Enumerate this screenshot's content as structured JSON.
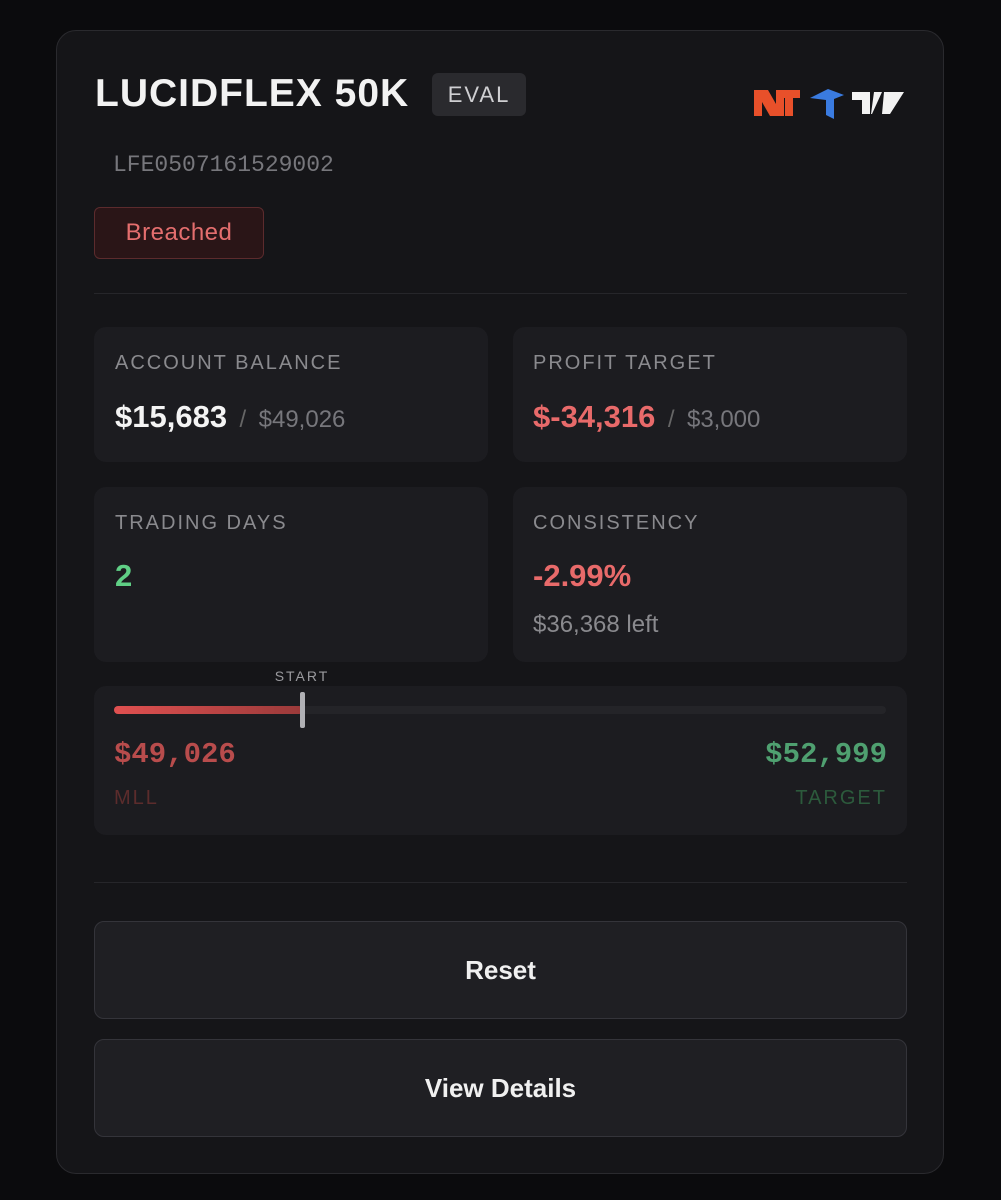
{
  "header": {
    "title": "LUCIDFLEX 50K",
    "badge": "EVAL",
    "account_id": "LFE0507161529002",
    "status": "Breached"
  },
  "stats": [
    {
      "label": "ACCOUNT BALANCE",
      "value": "$15,683",
      "separator": "/",
      "limit": "$49,026"
    },
    {
      "label": "PROFIT TARGET",
      "value": "$-34,316",
      "separator": "/",
      "limit": "$3,000"
    },
    {
      "label": "TRADING DAYS",
      "value": "2"
    },
    {
      "label": "CONSISTENCY",
      "value": "-2.99%",
      "note": "$36,368 left"
    }
  ],
  "progress": {
    "marker_label": "START",
    "min_value": "$49,026",
    "min_label": "MLL",
    "max_value": "$52,999",
    "max_label": "TARGET"
  },
  "buttons": [
    "Reset",
    "View Details"
  ]
}
